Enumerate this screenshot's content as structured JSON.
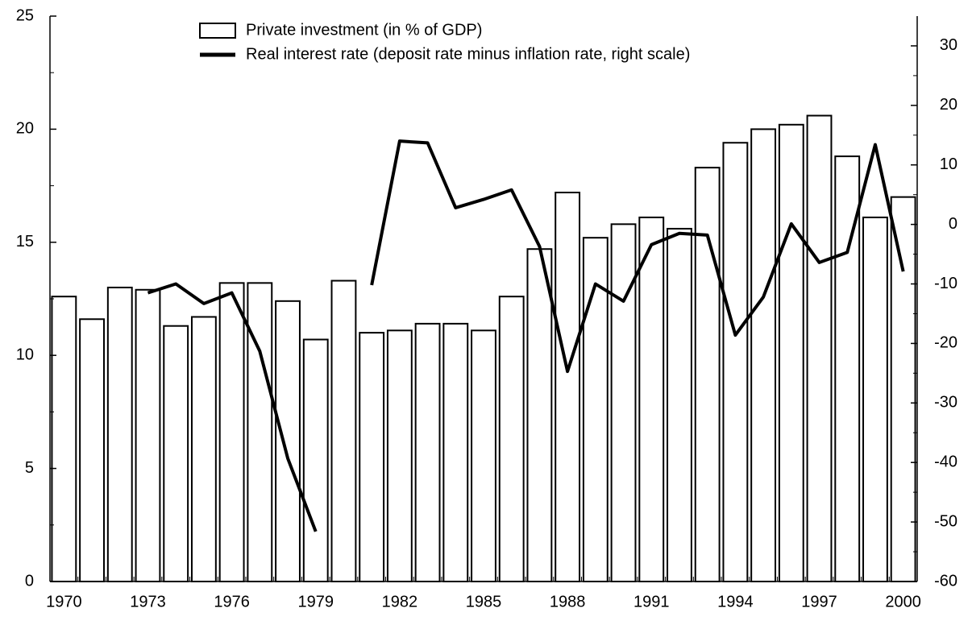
{
  "chart_data": {
    "type": "bar",
    "categories": [
      "1970",
      null,
      null,
      "1973",
      null,
      null,
      "1976",
      null,
      null,
      "1979",
      null,
      null,
      "1982",
      null,
      null,
      "1985",
      null,
      null,
      "1988",
      null,
      null,
      "1991",
      null,
      null,
      "1994",
      null,
      null,
      "1997",
      null,
      null,
      "2000"
    ],
    "series": [
      {
        "name": "Private investment (in % of GDP)",
        "type": "bar",
        "color": "#ffffff",
        "values": [
          12.6,
          11.6,
          13.0,
          12.9,
          11.3,
          11.7,
          13.2,
          13.2,
          12.4,
          10.7,
          13.3,
          11.0,
          11.1,
          11.4,
          11.4,
          11.1,
          12.6,
          14.7,
          17.2,
          15.2,
          15.8,
          16.1,
          15.6,
          18.3,
          19.4,
          20.0,
          20.2,
          20.6,
          18.8,
          16.1,
          17.0
        ]
      },
      {
        "name": "Real interest rate (deposit rate minus inflation rate, right scale)",
        "type": "line",
        "axis": "y2",
        "color": "#000000",
        "values": [
          null,
          null,
          null,
          -11.5,
          -10,
          -13.3,
          -11.5,
          -21.3,
          -39.3,
          -51.6,
          null,
          -10.2,
          14,
          13.7,
          2.8,
          4.2,
          5.8,
          -3.7,
          -24.7,
          -10,
          -12.9,
          -3.4,
          -1.5,
          -1.8,
          -18.6,
          -12.2,
          0.1,
          -6.4,
          -4.7,
          13.4,
          -7.9
        ]
      }
    ],
    "ylim": [
      0,
      25
    ],
    "yticks": [
      0,
      5,
      10,
      15,
      20,
      25
    ],
    "y2lim": [
      -60,
      35
    ],
    "y2ticks": [
      -60,
      -50,
      -40,
      -30,
      -20,
      -10,
      0,
      10,
      20,
      30
    ],
    "legend": "top"
  }
}
